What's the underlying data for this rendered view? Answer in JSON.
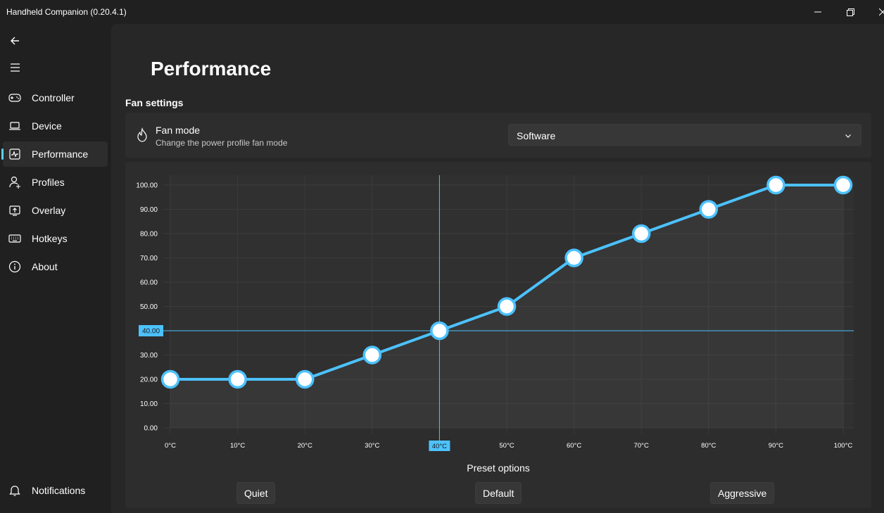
{
  "window": {
    "title": "Handheld Companion (0.20.4.1)"
  },
  "sidebar": {
    "items": [
      {
        "label": "Controller",
        "icon": "gamepad-icon"
      },
      {
        "label": "Device",
        "icon": "laptop-icon"
      },
      {
        "label": "Performance",
        "icon": "pulse-icon",
        "selected": true
      },
      {
        "label": "Profiles",
        "icon": "user-profile-icon"
      },
      {
        "label": "Overlay",
        "icon": "overlay-icon"
      },
      {
        "label": "Hotkeys",
        "icon": "keyboard-icon"
      },
      {
        "label": "About",
        "icon": "info-icon"
      }
    ],
    "notifications": {
      "label": "Notifications",
      "icon": "bell-icon"
    }
  },
  "page": {
    "title": "Performance",
    "section_title": "Fan settings",
    "fan_mode": {
      "title": "Fan mode",
      "description": "Change the power profile fan mode",
      "value": "Software"
    }
  },
  "chart_data": {
    "type": "line",
    "x": [
      "0°C",
      "10°C",
      "20°C",
      "30°C",
      "40°C",
      "50°C",
      "60°C",
      "70°C",
      "80°C",
      "90°C",
      "100°C"
    ],
    "values": [
      20,
      20,
      20,
      30,
      40,
      50,
      70,
      80,
      90,
      100,
      100
    ],
    "yticks": [
      "0.00",
      "10.00",
      "20.00",
      "30.00",
      "40.00",
      "50.00",
      "60.00",
      "70.00",
      "80.00",
      "90.00",
      "100.00"
    ],
    "ylim": [
      0,
      100
    ],
    "grid": true,
    "crosshair": {
      "x_label": "40°C",
      "y_label": "40.00",
      "x_index": 4,
      "y_value": 40
    },
    "colors": {
      "line": "#4cc2ff",
      "crosshair": "#4cc2ff",
      "grid": "#3b3b3b"
    }
  },
  "presets": {
    "title": "Preset options",
    "buttons": [
      "Quiet",
      "Default",
      "Aggressive"
    ]
  }
}
